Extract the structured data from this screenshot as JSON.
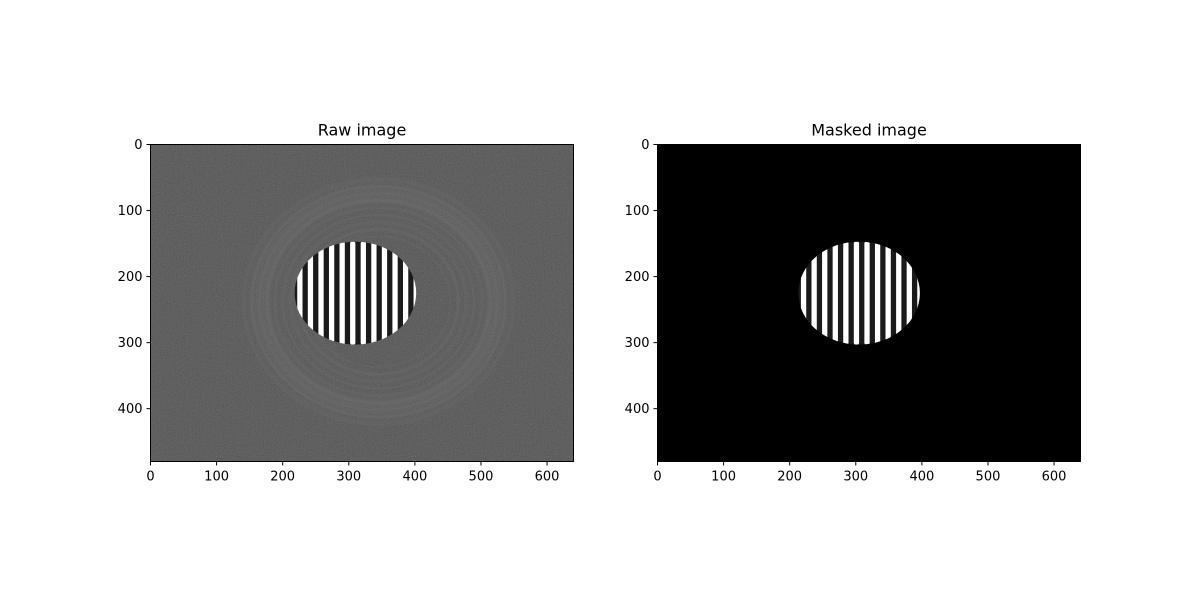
{
  "chart_data": [
    {
      "type": "image",
      "title": "Raw image",
      "image": {
        "width": 640,
        "height": 480,
        "colormap": "gray",
        "background": "noisy dark gray",
        "features": [
          "faint concentric ring pattern",
          "bright vertical fringe stripes in central ellipse"
        ]
      },
      "xlim": [
        0,
        640
      ],
      "ylim": [
        480,
        0
      ],
      "xticks": [
        0,
        100,
        200,
        300,
        400,
        500,
        600
      ],
      "yticks": [
        0,
        100,
        200,
        300,
        400
      ],
      "fringe_region": {
        "cx": 310,
        "cy": 225,
        "rx": 92,
        "ry": 78,
        "stripe_period": 16
      },
      "ring_region": {
        "cx": 345,
        "cy": 238,
        "rx": 198,
        "ry": 180
      },
      "grid": false
    },
    {
      "type": "image",
      "title": "Masked image",
      "image": {
        "width": 640,
        "height": 480,
        "colormap": "gray",
        "background": "black",
        "features": [
          "bright vertical fringe stripes in central ellipse"
        ]
      },
      "xlim": [
        0,
        640
      ],
      "ylim": [
        480,
        0
      ],
      "xticks": [
        0,
        100,
        200,
        300,
        400,
        500,
        600
      ],
      "yticks": [
        0,
        100,
        200,
        300,
        400
      ],
      "fringe_region": {
        "cx": 305,
        "cy": 225,
        "rx": 92,
        "ry": 78,
        "stripe_period": 16
      },
      "grid": false
    }
  ],
  "colors": {
    "axis": "#000000",
    "background": "#ffffff",
    "raw_bg": "#2f2f2f",
    "masked_bg": "#000000",
    "stripe": "#ffffff"
  }
}
